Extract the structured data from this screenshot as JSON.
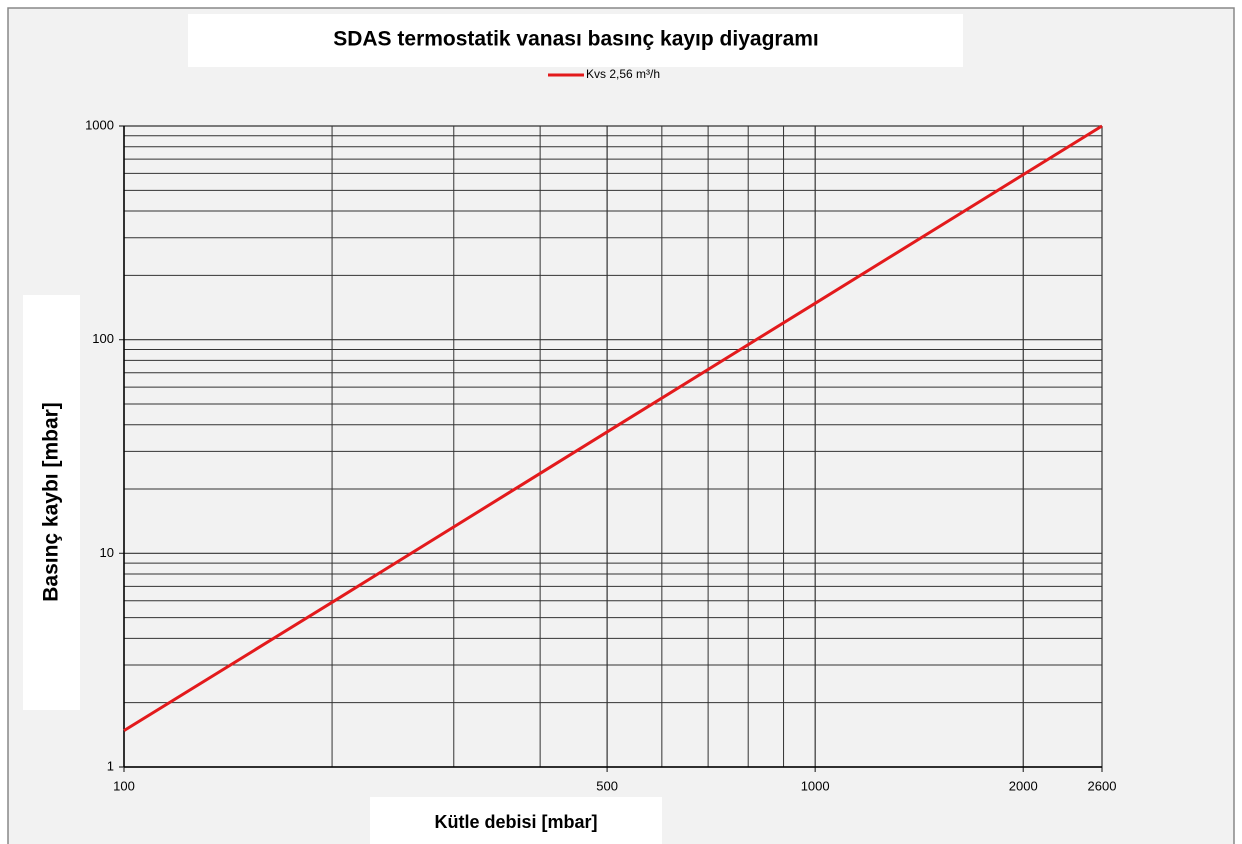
{
  "chart_data": {
    "type": "line",
    "title": "SDAS termostatik vanası basınç kayıp diyagramı",
    "x_label": "Kütle debisi [mbar]",
    "y_label": "Basınç kaybı [mbar]",
    "x": [
      100,
      200,
      500,
      1000,
      2000,
      2600
    ],
    "series": [
      {
        "name": "Kvs 2,56 m³/h",
        "color": "#e31a1c",
        "values": [
          1.48,
          5.9,
          37,
          148,
          592,
          1000
        ]
      }
    ],
    "xlim": [
      100,
      2600
    ],
    "ylim": [
      1,
      1000
    ],
    "xticks": [
      100,
      500,
      1000,
      2000,
      2600
    ],
    "yticks": [
      1,
      10,
      100,
      1000
    ],
    "xminor": [
      200,
      300,
      400,
      600,
      700,
      800,
      900
    ],
    "yminor": [
      2,
      3,
      4,
      5,
      6,
      7,
      8,
      9,
      20,
      30,
      40,
      50,
      60,
      70,
      80,
      90,
      200,
      300,
      400,
      500,
      600,
      700,
      800,
      900
    ],
    "xlog": true,
    "ylog": true,
    "grid": true,
    "legend": "top"
  }
}
